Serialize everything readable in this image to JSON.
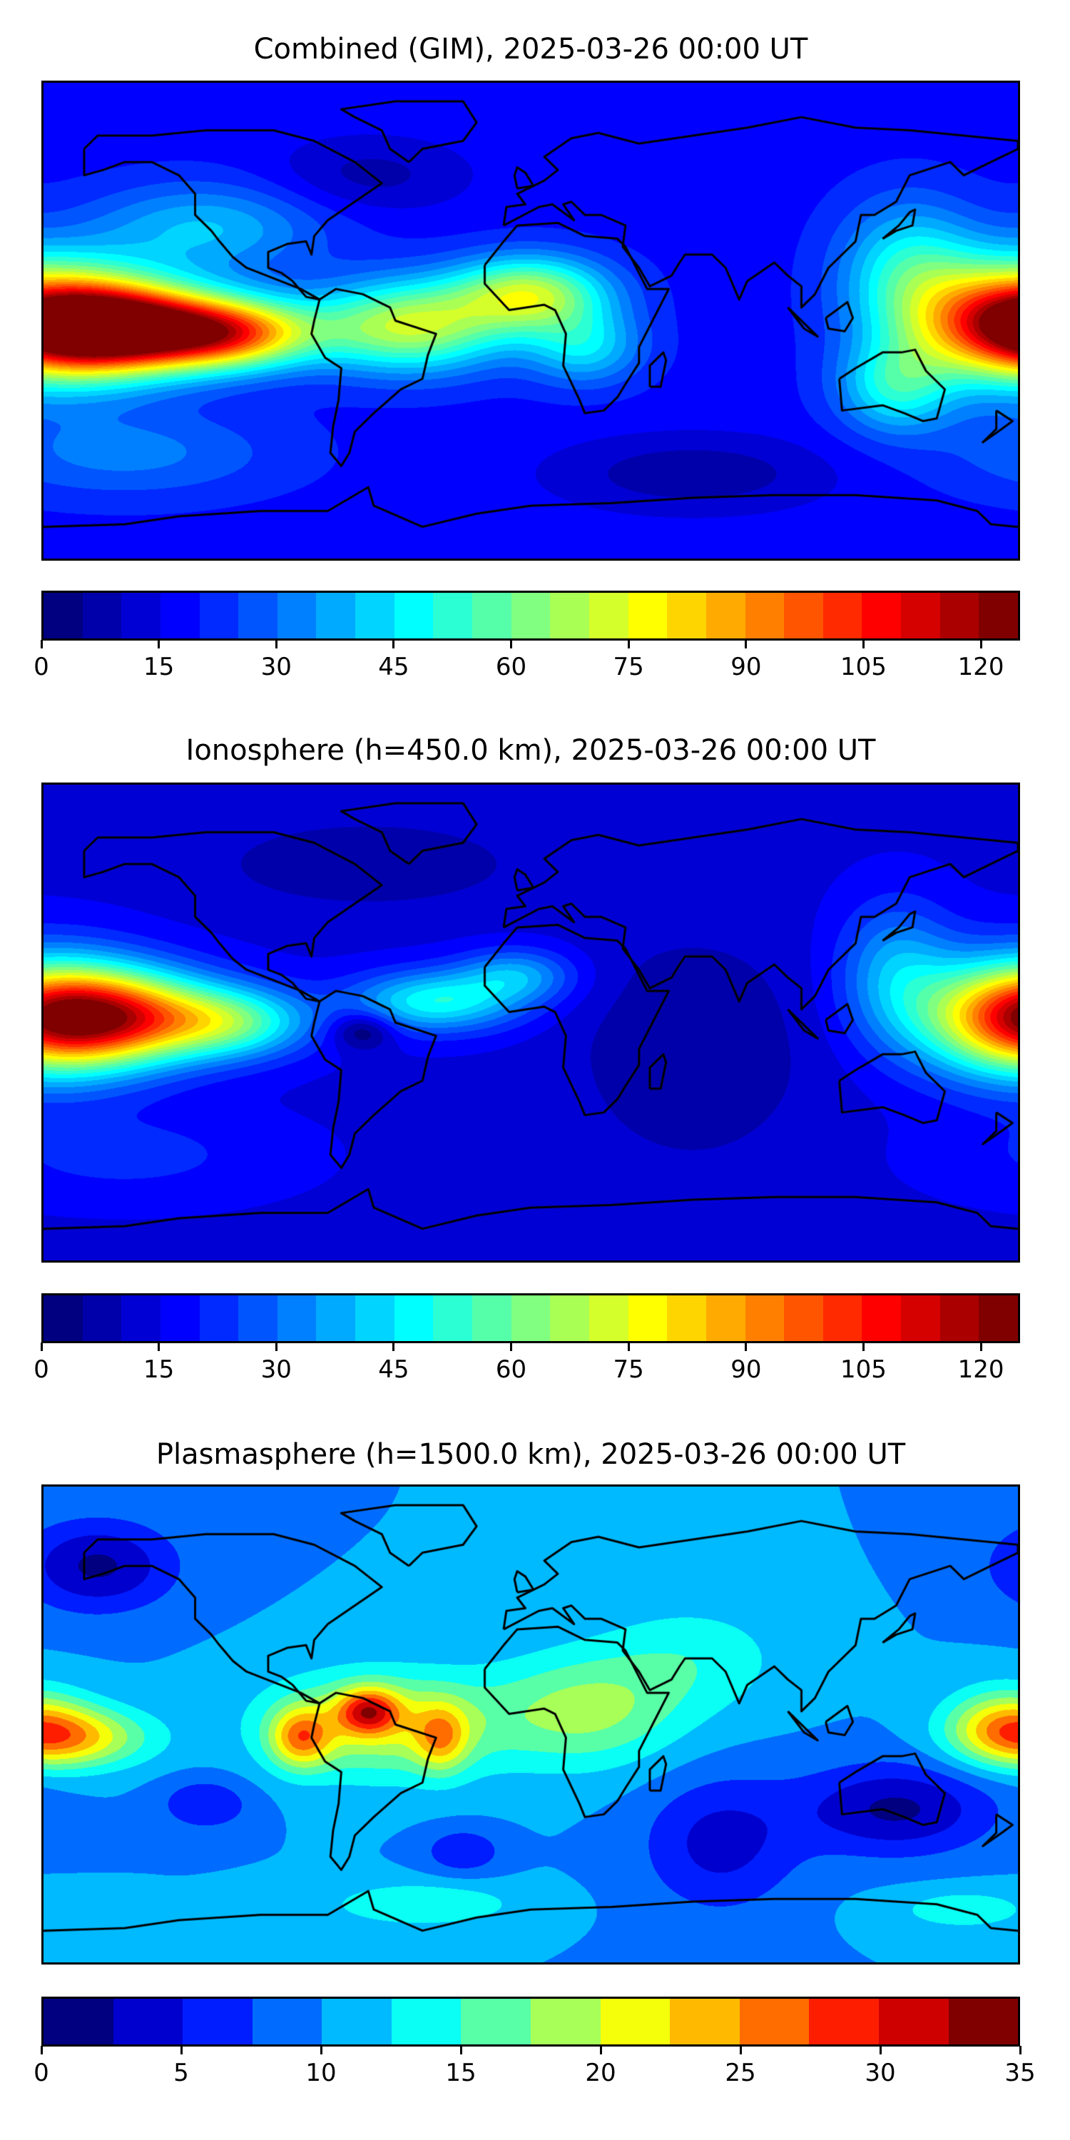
{
  "chart_data": [
    {
      "type": "heatmap",
      "title": "Combined (GIM), 2025-03-26 00:00 UT",
      "projection": "PlateCarree",
      "lon_range": [
        -180,
        180
      ],
      "lat_range": [
        -90,
        90
      ],
      "colormap": "jet",
      "levels": {
        "min": 0,
        "max": 125,
        "step": 5
      },
      "colorbar_ticks": [
        "0",
        "15",
        "30",
        "45",
        "60",
        "75",
        "90",
        "105",
        "120"
      ],
      "colorbar_tick_values": [
        0,
        15,
        30,
        45,
        60,
        75,
        90,
        105,
        120
      ],
      "field": {
        "base": 18,
        "features": [
          {
            "lon": -150,
            "lat": -3,
            "slon": 28,
            "slat": 11,
            "value": 95
          },
          {
            "lon": -110,
            "lat": -5,
            "slon": 22,
            "slat": 9,
            "value": 60
          },
          {
            "lon": -45,
            "lat": -2,
            "slon": 25,
            "slat": 12,
            "value": 52
          },
          {
            "lon": 0,
            "lat": 10,
            "slon": 20,
            "slat": 10,
            "value": 50
          },
          {
            "lon": 20,
            "lat": -10,
            "slon": 15,
            "slat": 10,
            "value": 25
          },
          {
            "lon": 180,
            "lat": 0,
            "slon": 28,
            "slat": 16,
            "value": 80
          },
          {
            "lon": 140,
            "lat": 20,
            "slon": 18,
            "slat": 18,
            "value": 28
          },
          {
            "lon": 135,
            "lat": -25,
            "slon": 15,
            "slat": 12,
            "value": 30
          },
          {
            "lon": -120,
            "lat": 35,
            "slon": 30,
            "slat": 12,
            "value": 22
          },
          {
            "lon": 60,
            "lat": -58,
            "slon": 35,
            "slat": 10,
            "value": -12
          },
          {
            "lon": -60,
            "lat": 55,
            "slon": 25,
            "slat": 10,
            "value": -10
          },
          {
            "lon": -150,
            "lat": -50,
            "slon": 40,
            "slat": 12,
            "value": 14
          }
        ]
      }
    },
    {
      "type": "heatmap",
      "title": "Ionosphere  (h=450.0 km), 2025-03-26 00:00 UT",
      "projection": "PlateCarree",
      "lon_range": [
        -180,
        180
      ],
      "lat_range": [
        -90,
        90
      ],
      "colormap": "jet",
      "levels": {
        "min": 0,
        "max": 125,
        "step": 5
      },
      "colorbar_ticks": [
        "0",
        "15",
        "30",
        "45",
        "60",
        "75",
        "90",
        "105",
        "120"
      ],
      "colorbar_tick_values": [
        0,
        15,
        30,
        45,
        60,
        75,
        90,
        105,
        120
      ],
      "field": {
        "base": 14,
        "features": [
          {
            "lon": -155,
            "lat": 2,
            "slon": 28,
            "slat": 12,
            "value": 72
          },
          {
            "lon": -110,
            "lat": 0,
            "slon": 20,
            "slat": 9,
            "value": 35
          },
          {
            "lon": -35,
            "lat": 8,
            "slon": 22,
            "slat": 8,
            "value": 35
          },
          {
            "lon": -5,
            "lat": 18,
            "slon": 15,
            "slat": 7,
            "value": 22
          },
          {
            "lon": 180,
            "lat": 2,
            "slon": 26,
            "slat": 16,
            "value": 62
          },
          {
            "lon": 135,
            "lat": 20,
            "slon": 15,
            "slat": 18,
            "value": 22
          },
          {
            "lon": -62,
            "lat": -3,
            "slon": 8,
            "slat": 5,
            "value": -18
          },
          {
            "lon": 60,
            "lat": -10,
            "slon": 30,
            "slat": 30,
            "value": -9
          },
          {
            "lon": -60,
            "lat": 60,
            "slon": 40,
            "slat": 12,
            "value": -8
          },
          {
            "lon": -150,
            "lat": -50,
            "slon": 40,
            "slat": 12,
            "value": 8
          }
        ]
      }
    },
    {
      "type": "heatmap",
      "title": "Plasmasphere (h=1500.0 km), 2025-03-26 00:00 UT",
      "projection": "PlateCarree",
      "lon_range": [
        -180,
        180
      ],
      "lat_range": [
        -90,
        90
      ],
      "colormap": "jet",
      "levels": {
        "min": 0,
        "max": 35,
        "step": 2.5
      },
      "colorbar_ticks": [
        "0",
        "5",
        "10",
        "15",
        "20",
        "25",
        "30",
        "35"
      ],
      "colorbar_tick_values": [
        0,
        5,
        10,
        15,
        20,
        25,
        30,
        35
      ],
      "field": {
        "base": 10,
        "features": [
          {
            "lon": -60,
            "lat": 5,
            "slon": 8,
            "slat": 6,
            "value": 14
          },
          {
            "lon": -85,
            "lat": -5,
            "slon": 8,
            "slat": 8,
            "value": 12
          },
          {
            "lon": -33,
            "lat": -5,
            "slon": 7,
            "slat": 9,
            "value": 9
          },
          {
            "lon": -55,
            "lat": 0,
            "slon": 30,
            "slat": 14,
            "value": 10
          },
          {
            "lon": -170,
            "lat": -5,
            "slon": 20,
            "slat": 8,
            "value": 12
          },
          {
            "lon": 20,
            "lat": 5,
            "slon": 25,
            "slat": 15,
            "value": 8
          },
          {
            "lon": 175,
            "lat": 0,
            "slon": 15,
            "slat": 10,
            "value": 10
          },
          {
            "lon": 60,
            "lat": 25,
            "slon": 25,
            "slat": 15,
            "value": 4
          },
          {
            "lon": 135,
            "lat": -32,
            "slon": 25,
            "slat": 12,
            "value": -8
          },
          {
            "lon": 70,
            "lat": -45,
            "slon": 20,
            "slat": 18,
            "value": -6
          },
          {
            "lon": -25,
            "lat": -48,
            "slon": 10,
            "slat": 6,
            "value": -5
          },
          {
            "lon": -120,
            "lat": -30,
            "slon": 12,
            "slat": 7,
            "value": -5
          },
          {
            "lon": -160,
            "lat": 60,
            "slon": 20,
            "slat": 12,
            "value": -8
          },
          {
            "lon": -40,
            "lat": -68,
            "slon": 25,
            "slat": 6,
            "value": 5
          },
          {
            "lon": 160,
            "lat": -70,
            "slon": 20,
            "slat": 6,
            "value": 4
          }
        ]
      }
    }
  ]
}
